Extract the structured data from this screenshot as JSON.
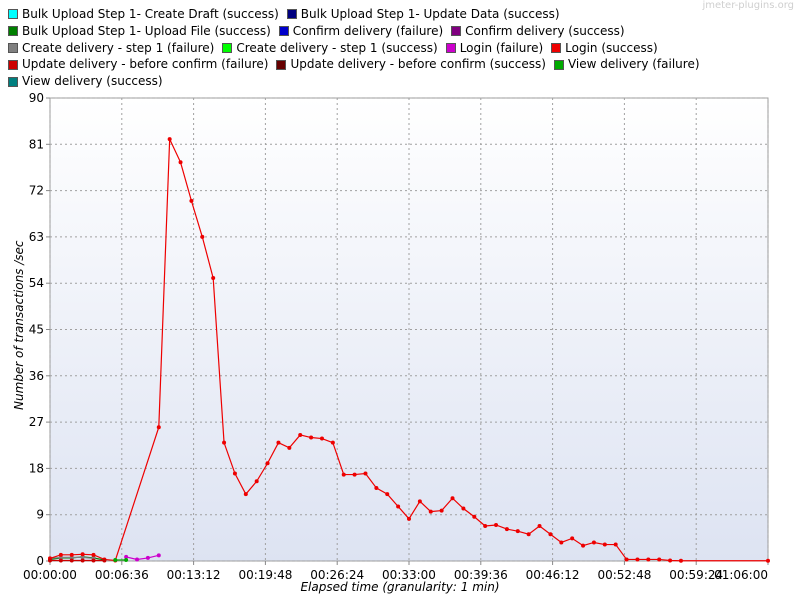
{
  "watermark": "jmeter-plugins.org",
  "chart_data": {
    "type": "line",
    "xlabel": "Elapsed time (granularity: 1 min)",
    "ylabel": "Number of transactions /sec",
    "xlim": [
      0,
      66
    ],
    "ylim": [
      0,
      90
    ],
    "x_ticks": [
      0,
      6.6,
      13.2,
      19.8,
      26.4,
      33.0,
      39.6,
      46.2,
      52.8,
      59.4,
      66.0
    ],
    "x_tick_labels": [
      "00:00:00",
      "00:06:36",
      "00:13:12",
      "00:19:48",
      "00:26:24",
      "00:33:00",
      "00:39:36",
      "00:46:12",
      "00:52:48",
      "00:59:24",
      "01:06:00"
    ],
    "y_ticks": [
      0,
      9,
      18,
      27,
      36,
      45,
      54,
      63,
      72,
      81,
      90
    ],
    "y_tick_labels": [
      "0",
      "9",
      "18",
      "27",
      "36",
      "45",
      "54",
      "63",
      "72",
      "81",
      "90"
    ],
    "grid": true,
    "legend_position": "top",
    "series": [
      {
        "name": "Bulk Upload Step 1- Create Draft (success)",
        "color": "#00ffff",
        "x": [],
        "y": []
      },
      {
        "name": "Bulk Upload Step 1- Update Data (success)",
        "color": "#00007f",
        "x": [],
        "y": []
      },
      {
        "name": "Bulk Upload Step 1- Upload File (success)",
        "color": "#007f00",
        "x": [
          0,
          1,
          2,
          3,
          4,
          5
        ],
        "y": [
          0.3,
          0.6,
          0.6,
          0.8,
          0.6,
          0.2
        ]
      },
      {
        "name": "Confirm delivery (failure)",
        "color": "#0000cc",
        "x": [],
        "y": []
      },
      {
        "name": "Confirm delivery (success)",
        "color": "#800080",
        "x": [],
        "y": []
      },
      {
        "name": "Create delivery - step 1 (failure)",
        "color": "#808080",
        "x": [
          0,
          1,
          2,
          3,
          4
        ],
        "y": [
          0.5,
          0.7,
          0.7,
          0.7,
          0.5
        ]
      },
      {
        "name": "Create delivery - step 1 (success)",
        "color": "#00ff00",
        "x": [],
        "y": []
      },
      {
        "name": "Login (failure)",
        "color": "#cc00cc",
        "x": [
          7,
          8,
          9,
          10
        ],
        "y": [
          0.8,
          0.3,
          0.6,
          1.1
        ]
      },
      {
        "name": "Login (success)",
        "color": "#ee0000",
        "x": [
          0,
          1,
          2,
          3,
          4,
          5,
          6,
          10,
          11,
          12,
          13,
          14,
          15,
          16,
          17,
          18,
          19,
          20,
          21,
          22,
          23,
          24,
          25,
          26,
          27,
          28,
          29,
          30,
          31,
          32,
          33,
          34,
          35,
          36,
          37,
          38,
          39,
          40,
          41,
          42,
          43,
          44,
          45,
          46,
          47,
          48,
          49,
          50,
          51,
          52,
          53,
          54,
          55,
          56,
          57,
          58,
          66
        ],
        "y": [
          0.5,
          1.2,
          1.2,
          1.3,
          1.2,
          0.3,
          0.1,
          26,
          82,
          77.5,
          70,
          63,
          55,
          23,
          17,
          13,
          15.5,
          19,
          23,
          22,
          24.5,
          24,
          23.8,
          23,
          16.8,
          16.8,
          17,
          14.2,
          13,
          10.6,
          8.2,
          11.6,
          9.6,
          9.8,
          12.2,
          10.2,
          8.6,
          6.8,
          7,
          6.2,
          5.8,
          5.2,
          6.8,
          5.2,
          3.6,
          4.4,
          3,
          3.6,
          3.2,
          3.2,
          0.3,
          0.3,
          0.3,
          0.3,
          0.1,
          0.05,
          0.05
        ]
      },
      {
        "name": "Update delivery - before confirm (failure)",
        "color": "#cc0000",
        "x": [
          0,
          1,
          2,
          3,
          4,
          5
        ],
        "y": [
          0.1,
          0.1,
          0.1,
          0.1,
          0.1,
          0.1
        ]
      },
      {
        "name": "Update delivery - before confirm (success)",
        "color": "#660000",
        "x": [],
        "y": []
      },
      {
        "name": "View delivery (failure)",
        "color": "#00aa00",
        "x": [
          6,
          7
        ],
        "y": [
          0.2,
          0.2
        ]
      },
      {
        "name": "View delivery (success)",
        "color": "#007f7f",
        "x": [],
        "y": []
      }
    ]
  }
}
